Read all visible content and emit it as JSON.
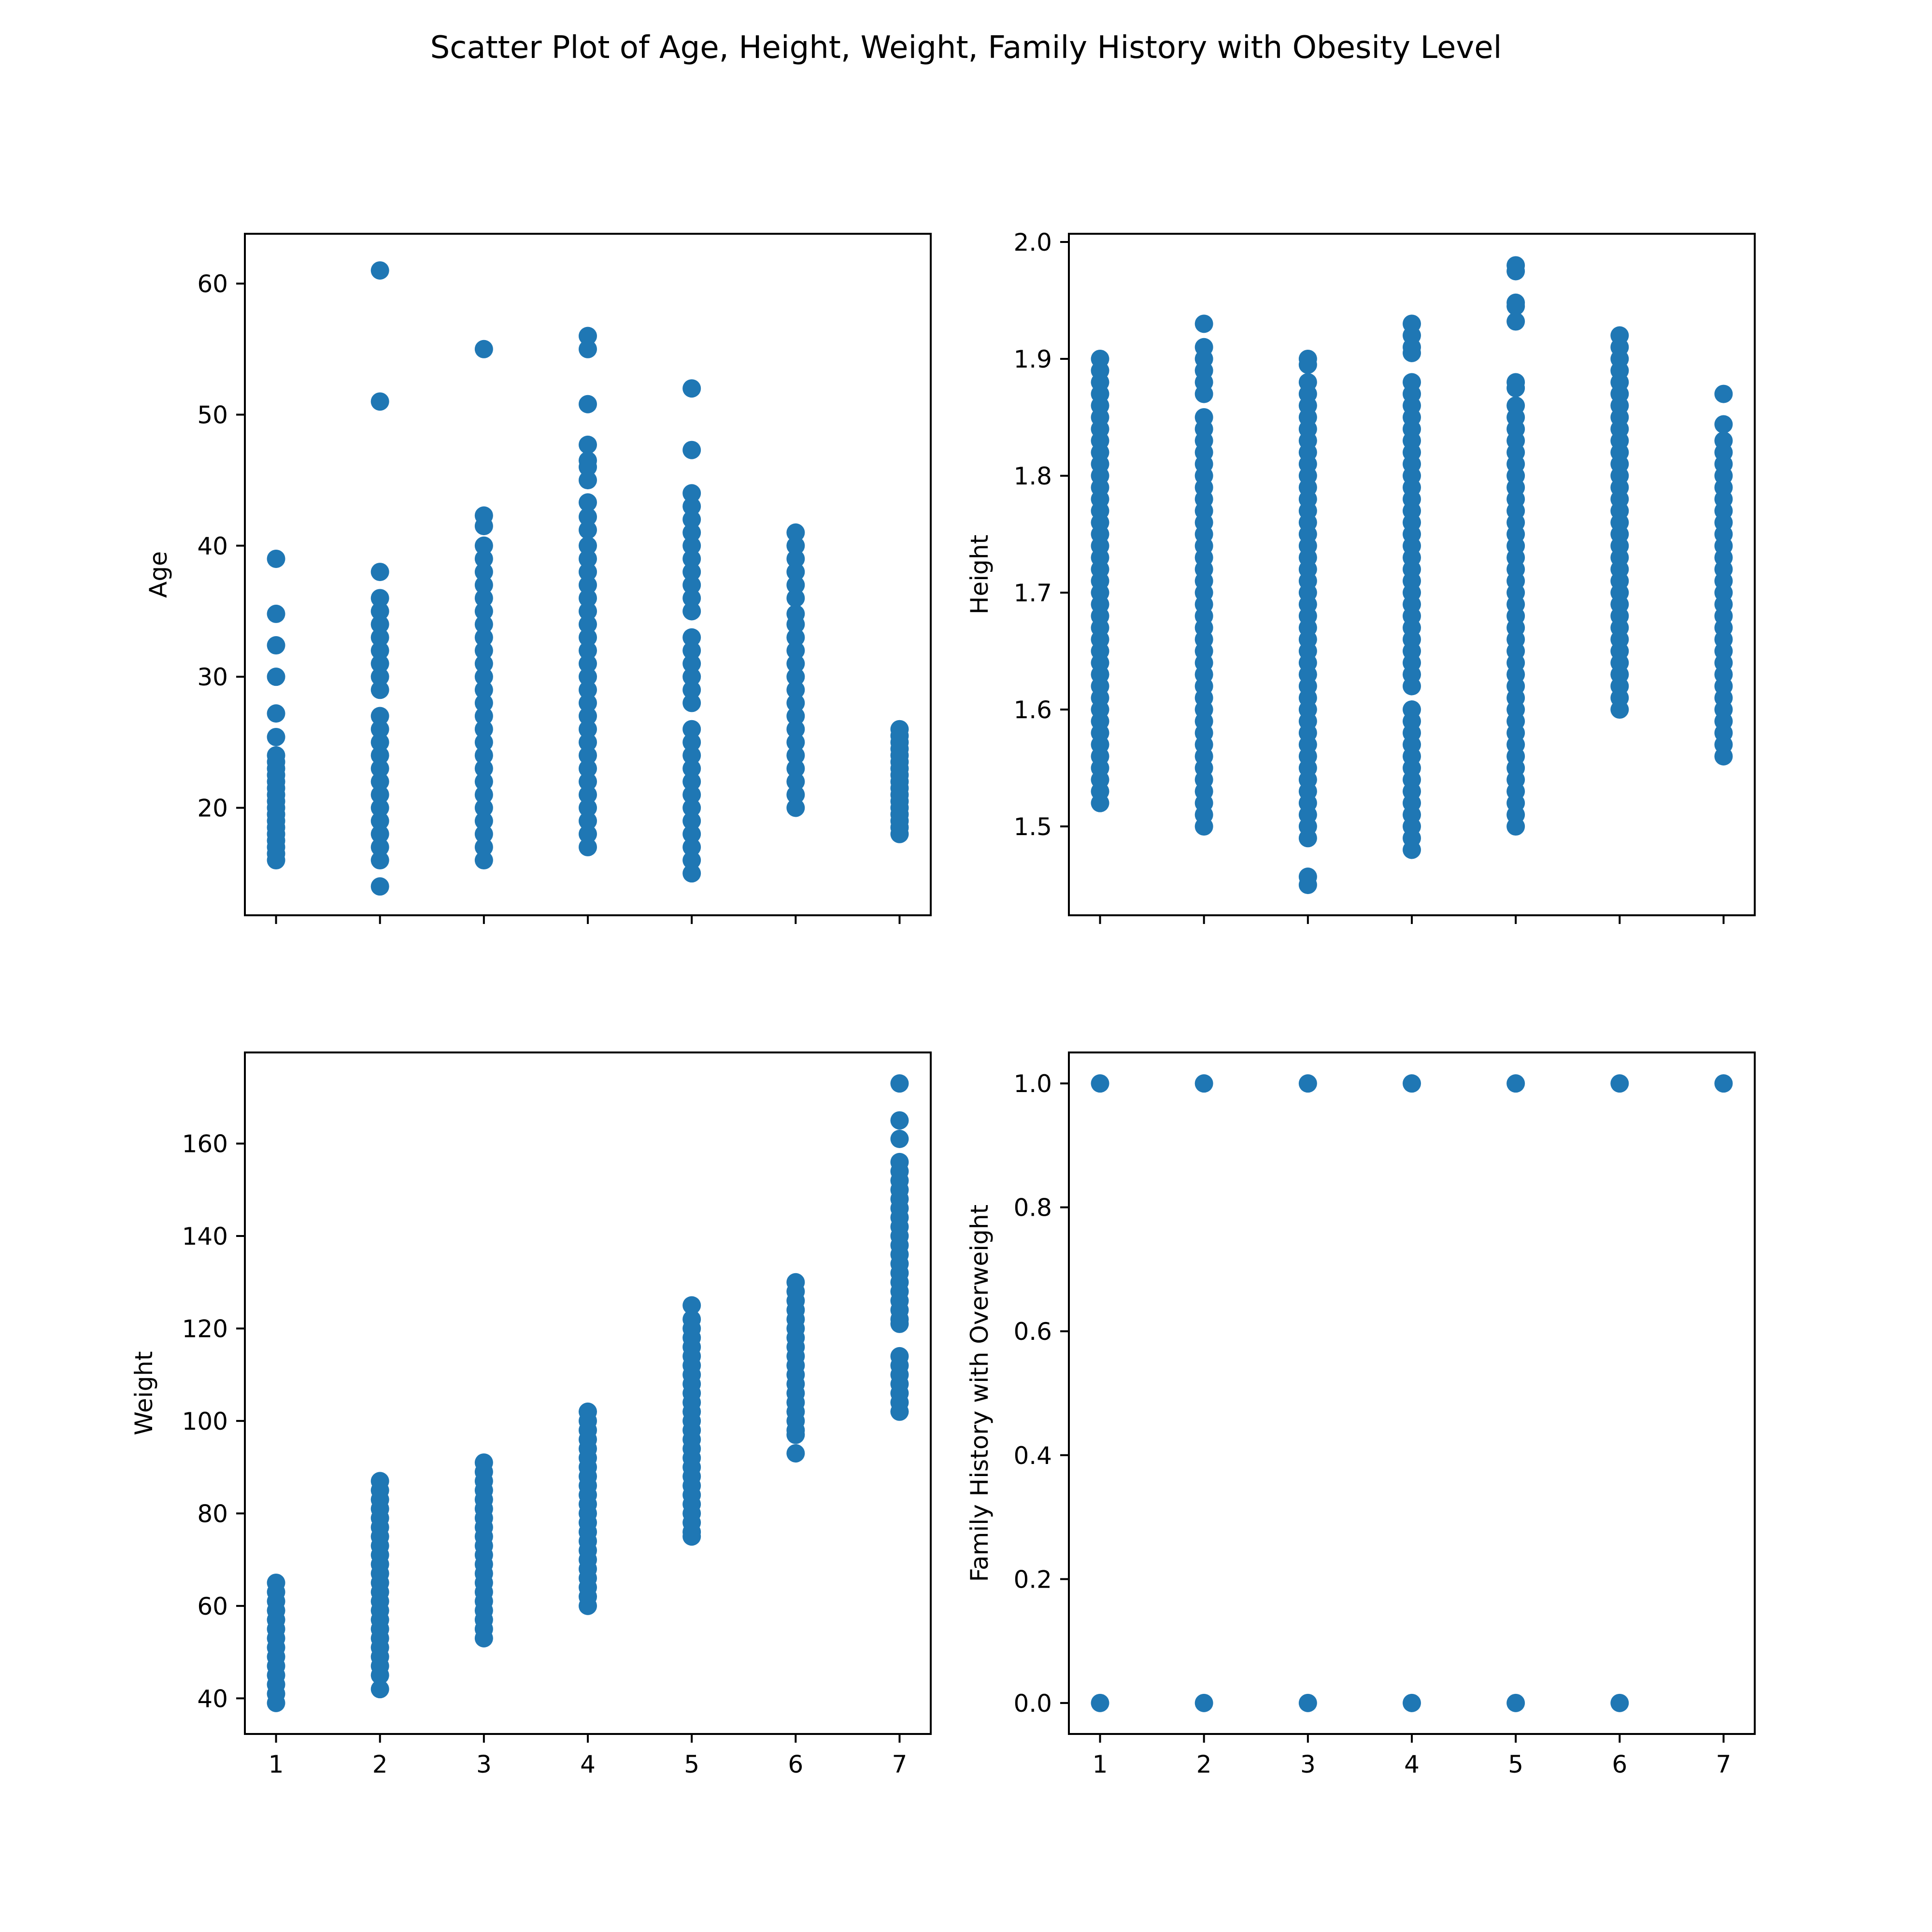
{
  "title": "Scatter Plot of Age, Height, Weight, Family History with Obesity Level",
  "colors": {
    "marker": "#1f77b4",
    "axis": "#000000"
  },
  "chart_data": [
    {
      "type": "scatter",
      "id": "age",
      "xlabel": "",
      "ylabel": "Age",
      "xlim": [
        0.7,
        7.3
      ],
      "ylim": [
        11.8,
        63.8
      ],
      "x_ticks": [
        1,
        2,
        3,
        4,
        5,
        6,
        7
      ],
      "x_ticklabels_shown": false,
      "y_ticks": [
        20,
        30,
        40,
        50,
        60
      ],
      "y_ticklabels": [
        "20",
        "30",
        "40",
        "50",
        "60"
      ],
      "grid": false,
      "points": [
        {
          "x": 1,
          "y": [
            39,
            34.8,
            32.4,
            30,
            27.2,
            25.4,
            24,
            23.5,
            23,
            22.5,
            22,
            21.5,
            21,
            20.5,
            20,
            19.5,
            19,
            18.5,
            18,
            17.5,
            17,
            16.5,
            16
          ]
        },
        {
          "x": 2,
          "y": [
            61,
            51,
            38,
            36,
            35,
            34,
            33,
            32,
            31,
            30,
            29,
            27,
            26,
            25,
            24,
            23,
            22,
            21,
            20,
            19,
            18,
            17,
            16,
            14
          ]
        },
        {
          "x": 3,
          "y": [
            55,
            42.3,
            41.5,
            40,
            39,
            38,
            37,
            36,
            35,
            34,
            33,
            32,
            31,
            30,
            29,
            28,
            27,
            26,
            25,
            24,
            23,
            22,
            21,
            20,
            19,
            18,
            17,
            16
          ]
        },
        {
          "x": 4,
          "y": [
            56,
            55,
            50.8,
            47.7,
            46.5,
            46,
            45,
            43.3,
            42.2,
            41.2,
            40,
            39,
            38,
            37,
            36,
            35,
            34,
            33,
            32,
            31,
            30,
            29,
            28,
            27,
            26,
            25,
            24,
            23,
            22,
            21,
            20,
            19,
            18,
            17
          ]
        },
        {
          "x": 5,
          "y": [
            52,
            47.3,
            44,
            43,
            42,
            41,
            40,
            39,
            38,
            37,
            36,
            35,
            33,
            32,
            31,
            30,
            29,
            28,
            26,
            25,
            24,
            23,
            22,
            21,
            20,
            19,
            18,
            17,
            16,
            15
          ]
        },
        {
          "x": 6,
          "y": [
            41,
            40,
            39,
            38,
            37,
            36,
            34.8,
            34,
            33,
            32,
            31,
            30,
            29,
            28,
            27,
            26,
            25,
            24,
            23,
            22,
            21,
            20
          ]
        },
        {
          "x": 7,
          "y": [
            26,
            25.5,
            25,
            24.5,
            24,
            23.5,
            23,
            22.5,
            22,
            21.5,
            21,
            20.5,
            20,
            19.5,
            19,
            18.5,
            18
          ]
        }
      ]
    },
    {
      "type": "scatter",
      "id": "height",
      "xlabel": "",
      "ylabel": "Height",
      "xlim": [
        0.7,
        7.3
      ],
      "ylim": [
        1.424,
        2.007
      ],
      "x_ticks": [
        1,
        2,
        3,
        4,
        5,
        6,
        7
      ],
      "x_ticklabels_shown": false,
      "y_ticks": [
        1.5,
        1.6,
        1.7,
        1.8,
        1.9,
        2.0
      ],
      "y_ticklabels": [
        "1.5",
        "1.6",
        "1.7",
        "1.8",
        "1.9",
        "2.0"
      ],
      "grid": false,
      "points": [
        {
          "x": 1,
          "y": [
            1.9,
            1.89,
            1.88,
            1.87,
            1.86,
            1.85,
            1.84,
            1.83,
            1.82,
            1.81,
            1.8,
            1.79,
            1.78,
            1.77,
            1.76,
            1.75,
            1.74,
            1.73,
            1.72,
            1.71,
            1.7,
            1.69,
            1.68,
            1.67,
            1.66,
            1.65,
            1.64,
            1.63,
            1.62,
            1.61,
            1.6,
            1.59,
            1.58,
            1.57,
            1.56,
            1.55,
            1.54,
            1.53,
            1.52
          ]
        },
        {
          "x": 2,
          "y": [
            1.93,
            1.91,
            1.9,
            1.89,
            1.88,
            1.87,
            1.85,
            1.84,
            1.83,
            1.82,
            1.81,
            1.8,
            1.79,
            1.78,
            1.77,
            1.76,
            1.75,
            1.74,
            1.73,
            1.72,
            1.71,
            1.7,
            1.69,
            1.68,
            1.67,
            1.66,
            1.65,
            1.64,
            1.63,
            1.62,
            1.61,
            1.6,
            1.59,
            1.58,
            1.57,
            1.56,
            1.55,
            1.54,
            1.53,
            1.52,
            1.51,
            1.5
          ]
        },
        {
          "x": 3,
          "y": [
            1.9,
            1.895,
            1.88,
            1.87,
            1.86,
            1.85,
            1.84,
            1.83,
            1.82,
            1.81,
            1.8,
            1.79,
            1.78,
            1.77,
            1.76,
            1.75,
            1.74,
            1.73,
            1.72,
            1.71,
            1.7,
            1.69,
            1.68,
            1.67,
            1.66,
            1.65,
            1.64,
            1.63,
            1.62,
            1.61,
            1.6,
            1.59,
            1.58,
            1.57,
            1.56,
            1.55,
            1.54,
            1.53,
            1.52,
            1.51,
            1.5,
            1.49,
            1.457,
            1.45
          ]
        },
        {
          "x": 4,
          "y": [
            1.93,
            1.92,
            1.91,
            1.905,
            1.88,
            1.87,
            1.86,
            1.85,
            1.84,
            1.83,
            1.82,
            1.81,
            1.8,
            1.79,
            1.78,
            1.77,
            1.76,
            1.75,
            1.74,
            1.73,
            1.72,
            1.71,
            1.7,
            1.69,
            1.68,
            1.67,
            1.66,
            1.65,
            1.64,
            1.63,
            1.62,
            1.6,
            1.59,
            1.58,
            1.57,
            1.56,
            1.55,
            1.54,
            1.53,
            1.52,
            1.51,
            1.5,
            1.49,
            1.48
          ]
        },
        {
          "x": 5,
          "y": [
            1.98,
            1.975,
            1.948,
            1.945,
            1.932,
            1.88,
            1.875,
            1.86,
            1.85,
            1.84,
            1.83,
            1.82,
            1.81,
            1.8,
            1.79,
            1.78,
            1.77,
            1.76,
            1.75,
            1.74,
            1.73,
            1.72,
            1.71,
            1.7,
            1.69,
            1.68,
            1.67,
            1.66,
            1.65,
            1.64,
            1.63,
            1.62,
            1.61,
            1.6,
            1.59,
            1.58,
            1.57,
            1.56,
            1.55,
            1.54,
            1.53,
            1.52,
            1.51,
            1.5
          ]
        },
        {
          "x": 6,
          "y": [
            1.92,
            1.91,
            1.9,
            1.89,
            1.88,
            1.87,
            1.86,
            1.85,
            1.84,
            1.83,
            1.82,
            1.81,
            1.8,
            1.79,
            1.78,
            1.77,
            1.76,
            1.75,
            1.74,
            1.73,
            1.72,
            1.71,
            1.7,
            1.69,
            1.68,
            1.67,
            1.66,
            1.65,
            1.64,
            1.63,
            1.62,
            1.61,
            1.6
          ]
        },
        {
          "x": 7,
          "y": [
            1.87,
            1.844,
            1.83,
            1.82,
            1.81,
            1.8,
            1.79,
            1.78,
            1.77,
            1.76,
            1.75,
            1.74,
            1.73,
            1.72,
            1.71,
            1.7,
            1.69,
            1.68,
            1.67,
            1.66,
            1.65,
            1.64,
            1.63,
            1.62,
            1.61,
            1.6,
            1.59,
            1.58,
            1.57,
            1.56
          ]
        }
      ]
    },
    {
      "type": "scatter",
      "id": "weight",
      "xlabel": "",
      "ylabel": "Weight",
      "xlim": [
        0.7,
        7.3
      ],
      "ylim": [
        32.3,
        179.7
      ],
      "x_ticks": [
        1,
        2,
        3,
        4,
        5,
        6,
        7
      ],
      "x_ticklabels_shown": true,
      "x_ticklabels": [
        "1",
        "2",
        "3",
        "4",
        "5",
        "6",
        "7"
      ],
      "y_ticks": [
        40,
        60,
        80,
        100,
        120,
        140,
        160
      ],
      "y_ticklabels": [
        "40",
        "60",
        "80",
        "100",
        "120",
        "140",
        "160"
      ],
      "grid": false,
      "points": [
        {
          "x": 1,
          "y": [
            65,
            63,
            61,
            59,
            57,
            55,
            53,
            51,
            49,
            47,
            45,
            43,
            41,
            39
          ]
        },
        {
          "x": 2,
          "y": [
            87,
            85,
            83,
            81,
            79,
            77,
            75,
            73,
            71,
            69,
            67,
            65,
            63,
            61,
            59,
            57,
            55,
            53,
            51,
            49,
            47,
            45,
            42
          ]
        },
        {
          "x": 3,
          "y": [
            91,
            89,
            87,
            85,
            83,
            81,
            79,
            77,
            75,
            73,
            71,
            69,
            67,
            65,
            63,
            61,
            59,
            57,
            55,
            53
          ]
        },
        {
          "x": 4,
          "y": [
            102,
            100,
            98,
            96,
            94,
            92,
            90,
            88,
            86,
            84,
            82,
            80,
            78,
            76,
            74,
            72,
            70,
            68,
            66,
            64,
            62,
            60
          ]
        },
        {
          "x": 5,
          "y": [
            125,
            122,
            120,
            118,
            116,
            114,
            112,
            110,
            108,
            106,
            104,
            102,
            100,
            98,
            96,
            94,
            92,
            90,
            88,
            86,
            84,
            82,
            80,
            78,
            76,
            75
          ]
        },
        {
          "x": 6,
          "y": [
            130,
            128,
            126,
            124,
            122,
            120,
            118,
            116,
            114,
            112,
            110,
            108,
            106,
            104,
            102,
            100,
            98,
            97,
            93
          ]
        },
        {
          "x": 7,
          "y": [
            173,
            165,
            161,
            156,
            154,
            152,
            150,
            148,
            146,
            144,
            142,
            140,
            138,
            136,
            134,
            132,
            130,
            128,
            126,
            124,
            122,
            121,
            114,
            112,
            110,
            108,
            106,
            104,
            102
          ]
        }
      ]
    },
    {
      "type": "scatter",
      "id": "family_history",
      "xlabel": "",
      "ylabel": "Family History with Overweight",
      "xlim": [
        0.7,
        7.3
      ],
      "ylim": [
        -0.05,
        1.05
      ],
      "x_ticks": [
        1,
        2,
        3,
        4,
        5,
        6,
        7
      ],
      "x_ticklabels_shown": true,
      "x_ticklabels": [
        "1",
        "2",
        "3",
        "4",
        "5",
        "6",
        "7"
      ],
      "y_ticks": [
        0.0,
        0.2,
        0.4,
        0.6,
        0.8,
        1.0
      ],
      "y_ticklabels": [
        "0.0",
        "0.2",
        "0.4",
        "0.6",
        "0.8",
        "1.0"
      ],
      "grid": false,
      "points": [
        {
          "x": 1,
          "y": [
            1,
            0
          ]
        },
        {
          "x": 2,
          "y": [
            1,
            0
          ]
        },
        {
          "x": 3,
          "y": [
            1,
            0
          ]
        },
        {
          "x": 4,
          "y": [
            1,
            0
          ]
        },
        {
          "x": 5,
          "y": [
            1,
            0
          ]
        },
        {
          "x": 6,
          "y": [
            1,
            0
          ]
        },
        {
          "x": 7,
          "y": [
            1
          ]
        }
      ]
    }
  ]
}
